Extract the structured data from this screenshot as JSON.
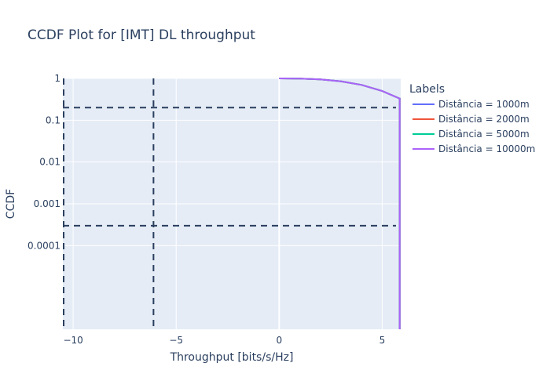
{
  "chart_data": {
    "type": "line",
    "title": "CCDF Plot for [IMT] DL throughput",
    "xlabel": "Throughput [bits/s/Hz]",
    "ylabel": "CCDF",
    "x_scale": "linear",
    "y_scale": "log",
    "xlim": [
      -10.5,
      5.9
    ],
    "ylim": [
      1e-06,
      1
    ],
    "x_ticks": [
      -10,
      -5,
      0,
      5
    ],
    "x_tick_labels": [
      "−10",
      "−5",
      "0",
      "5"
    ],
    "y_ticks": [
      1,
      0.1,
      0.01,
      0.001,
      0.0001
    ],
    "y_tick_labels": [
      "1",
      "0.1",
      "0.01",
      "0.001",
      "0.0001"
    ],
    "grid": true,
    "background_color": "#e5ecf6",
    "legend_title": "Labels",
    "legend_position": "right",
    "series": [
      {
        "name": "Distância = 1000m",
        "color": "#636efa",
        "x": [
          0,
          1,
          2,
          3,
          4,
          5,
          5.85,
          5.85
        ],
        "y": [
          1,
          0.99,
          0.95,
          0.85,
          0.7,
          0.5,
          0.33,
          1e-06
        ]
      },
      {
        "name": "Distância = 2000m",
        "color": "#ef553b",
        "x": [
          0,
          1,
          2,
          3,
          4,
          5,
          5.85,
          5.85
        ],
        "y": [
          1,
          0.99,
          0.95,
          0.85,
          0.7,
          0.5,
          0.33,
          1e-06
        ]
      },
      {
        "name": "Distância = 5000m",
        "color": "#00cc96",
        "x": [
          0,
          1,
          2,
          3,
          4,
          5,
          5.85,
          5.85
        ],
        "y": [
          1,
          0.99,
          0.95,
          0.85,
          0.7,
          0.5,
          0.33,
          1e-06
        ]
      },
      {
        "name": "Distância = 10000m",
        "color": "#ab63fa",
        "x": [
          0,
          1,
          2,
          3,
          4,
          5,
          5.85,
          5.85
        ],
        "y": [
          1,
          0.99,
          0.95,
          0.85,
          0.7,
          0.5,
          0.33,
          1e-06
        ]
      }
    ],
    "reference_lines": {
      "color": "#2a3f5f",
      "vertical_x": [
        -10.5,
        -6.1
      ],
      "horizontal_y": [
        0.2,
        0.0003
      ]
    }
  }
}
